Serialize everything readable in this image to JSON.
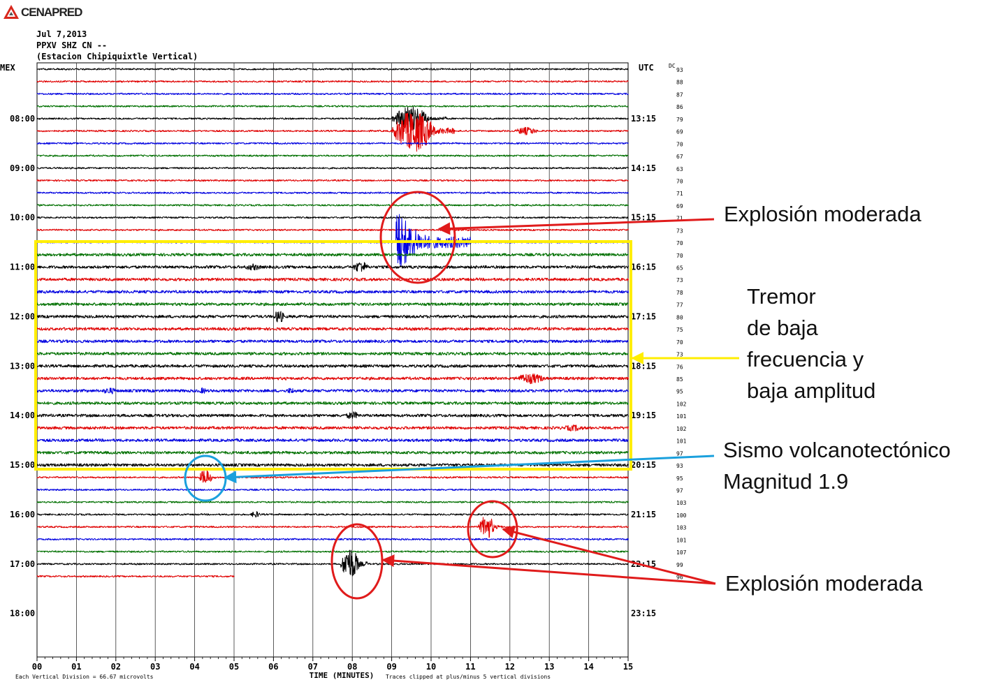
{
  "logo": {
    "text": "CENAPRED"
  },
  "header": {
    "date": "Jul 7,2013",
    "station_code": "PPXV SHZ CN --",
    "station_name": "(Estacion Chipiquixtle Vertical)"
  },
  "chart_data": {
    "type": "seismogram",
    "left_time_zone": "MEX",
    "right_time_zone": "UTC",
    "dc_label": "DC",
    "left_hour_labels": [
      "08:00",
      "09:00",
      "10:00",
      "11:00",
      "12:00",
      "13:00",
      "14:00",
      "15:00",
      "16:00",
      "17:00",
      "18:00"
    ],
    "right_hour_labels": [
      "13:15",
      "14:15",
      "15:15",
      "16:15",
      "17:15",
      "18:15",
      "19:15",
      "20:15",
      "21:15",
      "22:15",
      "23:15"
    ],
    "dc_values": [
      "93",
      "88",
      "87",
      "86",
      "79",
      "69",
      "70",
      "67",
      "63",
      "70",
      "71",
      "69",
      "71",
      "73",
      "70",
      "70",
      "65",
      "73",
      "78",
      "77",
      "80",
      "75",
      "70",
      "73",
      "76",
      "85",
      "95",
      "102",
      "101",
      "102",
      "101",
      "97",
      "93",
      "95",
      "97",
      "103",
      "100",
      "103",
      "101",
      "107",
      "99",
      "96"
    ],
    "trace_colors": [
      "#000000",
      "#e00000",
      "#0000e0",
      "#007000"
    ],
    "x_ticks": [
      "00",
      "01",
      "02",
      "03",
      "04",
      "05",
      "06",
      "07",
      "08",
      "09",
      "10",
      "11",
      "12",
      "13",
      "14",
      "15"
    ],
    "xlabel": "TIME (MINUTES)",
    "xlim": [
      0,
      15
    ],
    "footer_left": "Each Vertical Division =    66.67 microvolts",
    "footer_right": "Traces clipped at plus/minus 5 vertical divisions",
    "events": [
      {
        "trace": 4,
        "start_min": 9.0,
        "end_min": 10.4,
        "amplitude": 18,
        "kind": "burst"
      },
      {
        "trace": 5,
        "start_min": 9.0,
        "end_min": 10.6,
        "amplitude": 30,
        "kind": "burst"
      },
      {
        "trace": 5,
        "start_min": 12.1,
        "end_min": 13.0,
        "amplitude": 6,
        "kind": "burst"
      },
      {
        "trace": 14,
        "start_min": 9.1,
        "end_min": 11.0,
        "amplitude": 55,
        "kind": "explosion"
      },
      {
        "trace": 16,
        "start_min": 8.0,
        "end_min": 8.6,
        "amplitude": 9,
        "kind": "burst"
      },
      {
        "trace": 16,
        "start_min": 5.2,
        "end_min": 6.0,
        "amplitude": 5,
        "kind": "burst"
      },
      {
        "trace": 20,
        "start_min": 6.0,
        "end_min": 6.4,
        "amplitude": 10,
        "kind": "burst"
      },
      {
        "trace": 25,
        "start_min": 12.1,
        "end_min": 13.3,
        "amplitude": 8,
        "kind": "burst"
      },
      {
        "trace": 26,
        "start_min": 1.6,
        "end_min": 2.3,
        "amplitude": 5,
        "kind": "burst"
      },
      {
        "trace": 26,
        "start_min": 4.1,
        "end_min": 4.4,
        "amplitude": 5,
        "kind": "burst"
      },
      {
        "trace": 26,
        "start_min": 6.3,
        "end_min": 6.7,
        "amplitude": 5,
        "kind": "burst"
      },
      {
        "trace": 28,
        "start_min": 7.8,
        "end_min": 8.4,
        "amplitude": 6,
        "kind": "burst"
      },
      {
        "trace": 29,
        "start_min": 13.3,
        "end_min": 14.2,
        "amplitude": 5,
        "kind": "burst"
      },
      {
        "trace": 33,
        "start_min": 4.1,
        "end_min": 4.6,
        "amplitude": 12,
        "kind": "burst"
      },
      {
        "trace": 36,
        "start_min": 5.4,
        "end_min": 5.8,
        "amplitude": 5,
        "kind": "burst"
      },
      {
        "trace": 37,
        "start_min": 11.2,
        "end_min": 11.8,
        "amplitude": 18,
        "kind": "burst"
      },
      {
        "trace": 40,
        "start_min": 7.7,
        "end_min": 8.4,
        "amplitude": 24,
        "kind": "burst"
      }
    ]
  },
  "annotations": {
    "explosion_top": "Explosión moderada",
    "tremor_line1": "Tremor",
    "tremor_line2": "de baja",
    "tremor_line3": "frecuencia y",
    "tremor_line4": "baja amplitud",
    "vt_line1": "Sismo volcanotectónico",
    "vt_line2": "Magnitud 1.9",
    "explosion_bottom": "Explosión moderada",
    "colors": {
      "explosion": "#e01b1b",
      "tremor": "#ffee00",
      "vt": "#1aa0dd"
    }
  }
}
